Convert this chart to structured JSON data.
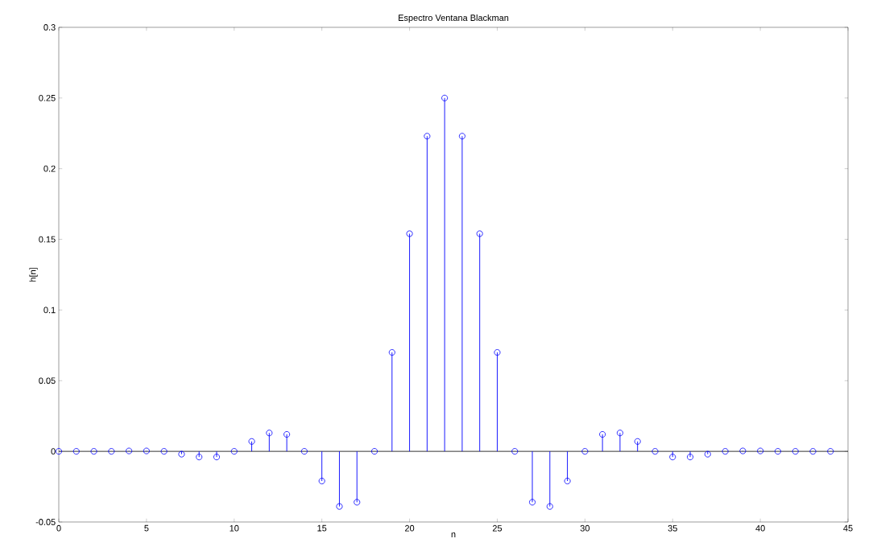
{
  "chart_data": {
    "type": "lollipop",
    "title": "Espectro Ventana Blackman",
    "xlabel": "n",
    "ylabel": "h[n]",
    "x": [
      0,
      1,
      2,
      3,
      4,
      5,
      6,
      7,
      8,
      9,
      10,
      11,
      12,
      13,
      14,
      15,
      16,
      17,
      18,
      19,
      20,
      21,
      22,
      23,
      24,
      25,
      26,
      27,
      28,
      29,
      30,
      31,
      32,
      33,
      34,
      35,
      36,
      37,
      38,
      39,
      40,
      41,
      42,
      43,
      44
    ],
    "values": [
      0,
      0,
      0,
      0,
      0.0003,
      0.0003,
      0,
      -0.002,
      -0.004,
      -0.004,
      0,
      0.007,
      0.013,
      0.012,
      0,
      -0.021,
      -0.039,
      -0.036,
      0,
      0.07,
      0.154,
      0.223,
      0.25,
      0.223,
      0.154,
      0.07,
      0,
      -0.036,
      -0.039,
      -0.021,
      0,
      0.012,
      0.013,
      0.007,
      0,
      -0.004,
      -0.004,
      -0.002,
      0,
      0.0003,
      0.0003,
      0,
      0,
      0,
      0
    ],
    "color": "#0000ff",
    "marker": "circle",
    "xlim": [
      0,
      45
    ],
    "xticks": [
      0,
      5,
      10,
      15,
      20,
      25,
      30,
      35,
      40,
      45
    ],
    "ylim": [
      -0.05,
      0.3
    ],
    "yticks": [
      -0.05,
      0,
      0.05,
      0.1,
      0.15,
      0.2,
      0.25,
      0.3
    ]
  }
}
